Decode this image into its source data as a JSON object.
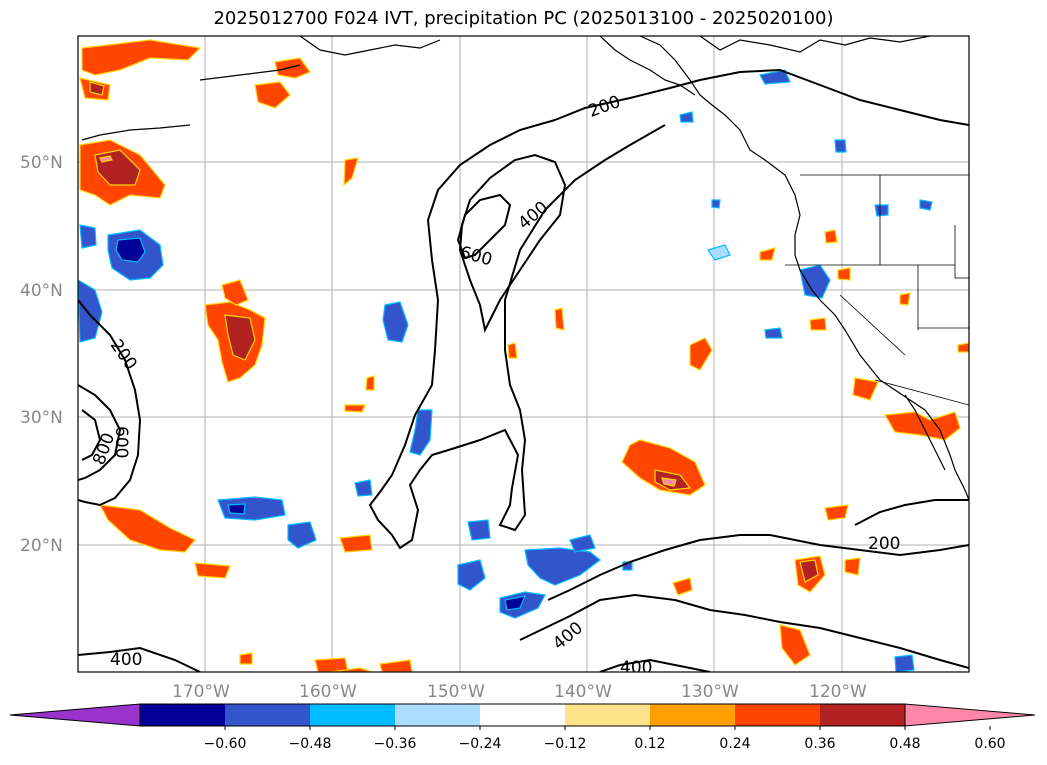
{
  "title": "2025012700 F024 IVT, precipitation PC (2025013100 - 2025020100)",
  "latitude_labels": [
    "50°N",
    "40°N",
    "30°N",
    "20°N"
  ],
  "longitude_labels": [
    "170°W",
    "160°W",
    "150°W",
    "140°W",
    "130°W",
    "120°W"
  ],
  "ivt_contour_labels": [
    "200",
    "400",
    "600",
    "200",
    "800",
    "600",
    "400",
    "200",
    "400",
    "400"
  ],
  "colorbar": {
    "tick_labels": [
      "−0.60",
      "−0.48",
      "−0.36",
      "−0.24",
      "−0.12",
      "0.12",
      "0.24",
      "0.36",
      "0.48",
      "0.60"
    ],
    "colors": [
      "#9933cc",
      "#000099",
      "#3355cc",
      "#00bbff",
      "#aaddff",
      "#ffffff",
      "#ffe38a",
      "#ffa000",
      "#ff4500",
      "#b22222",
      "#ff88aa"
    ]
  }
}
